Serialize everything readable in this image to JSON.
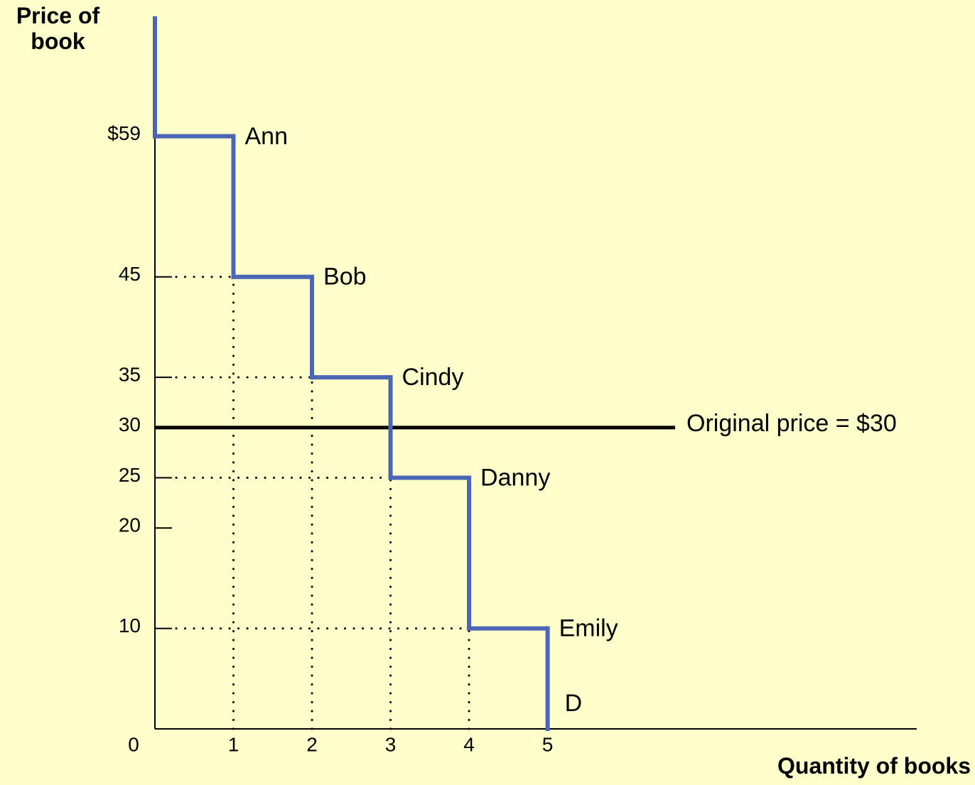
{
  "chart_data": {
    "type": "step",
    "y_label": "Price of book",
    "x_label": "Quantity of books",
    "categories": [
      "Ann",
      "Bob",
      "Cindy",
      "Danny",
      "Emily"
    ],
    "values": [
      59,
      45,
      35,
      25,
      10
    ],
    "curve_label": "D",
    "color": "#4a66b4",
    "xlim": [
      0,
      9.7
    ],
    "ylim": [
      0,
      70.3
    ],
    "xticks": [
      0,
      1,
      2,
      3,
      4,
      5
    ],
    "yticks": [
      10,
      20,
      25,
      30,
      35,
      45,
      {
        "value": 59,
        "label": "$59"
      }
    ],
    "grid": false,
    "reference_line": {
      "value": 30,
      "label": "Original price = $30",
      "color": "#000000"
    }
  }
}
